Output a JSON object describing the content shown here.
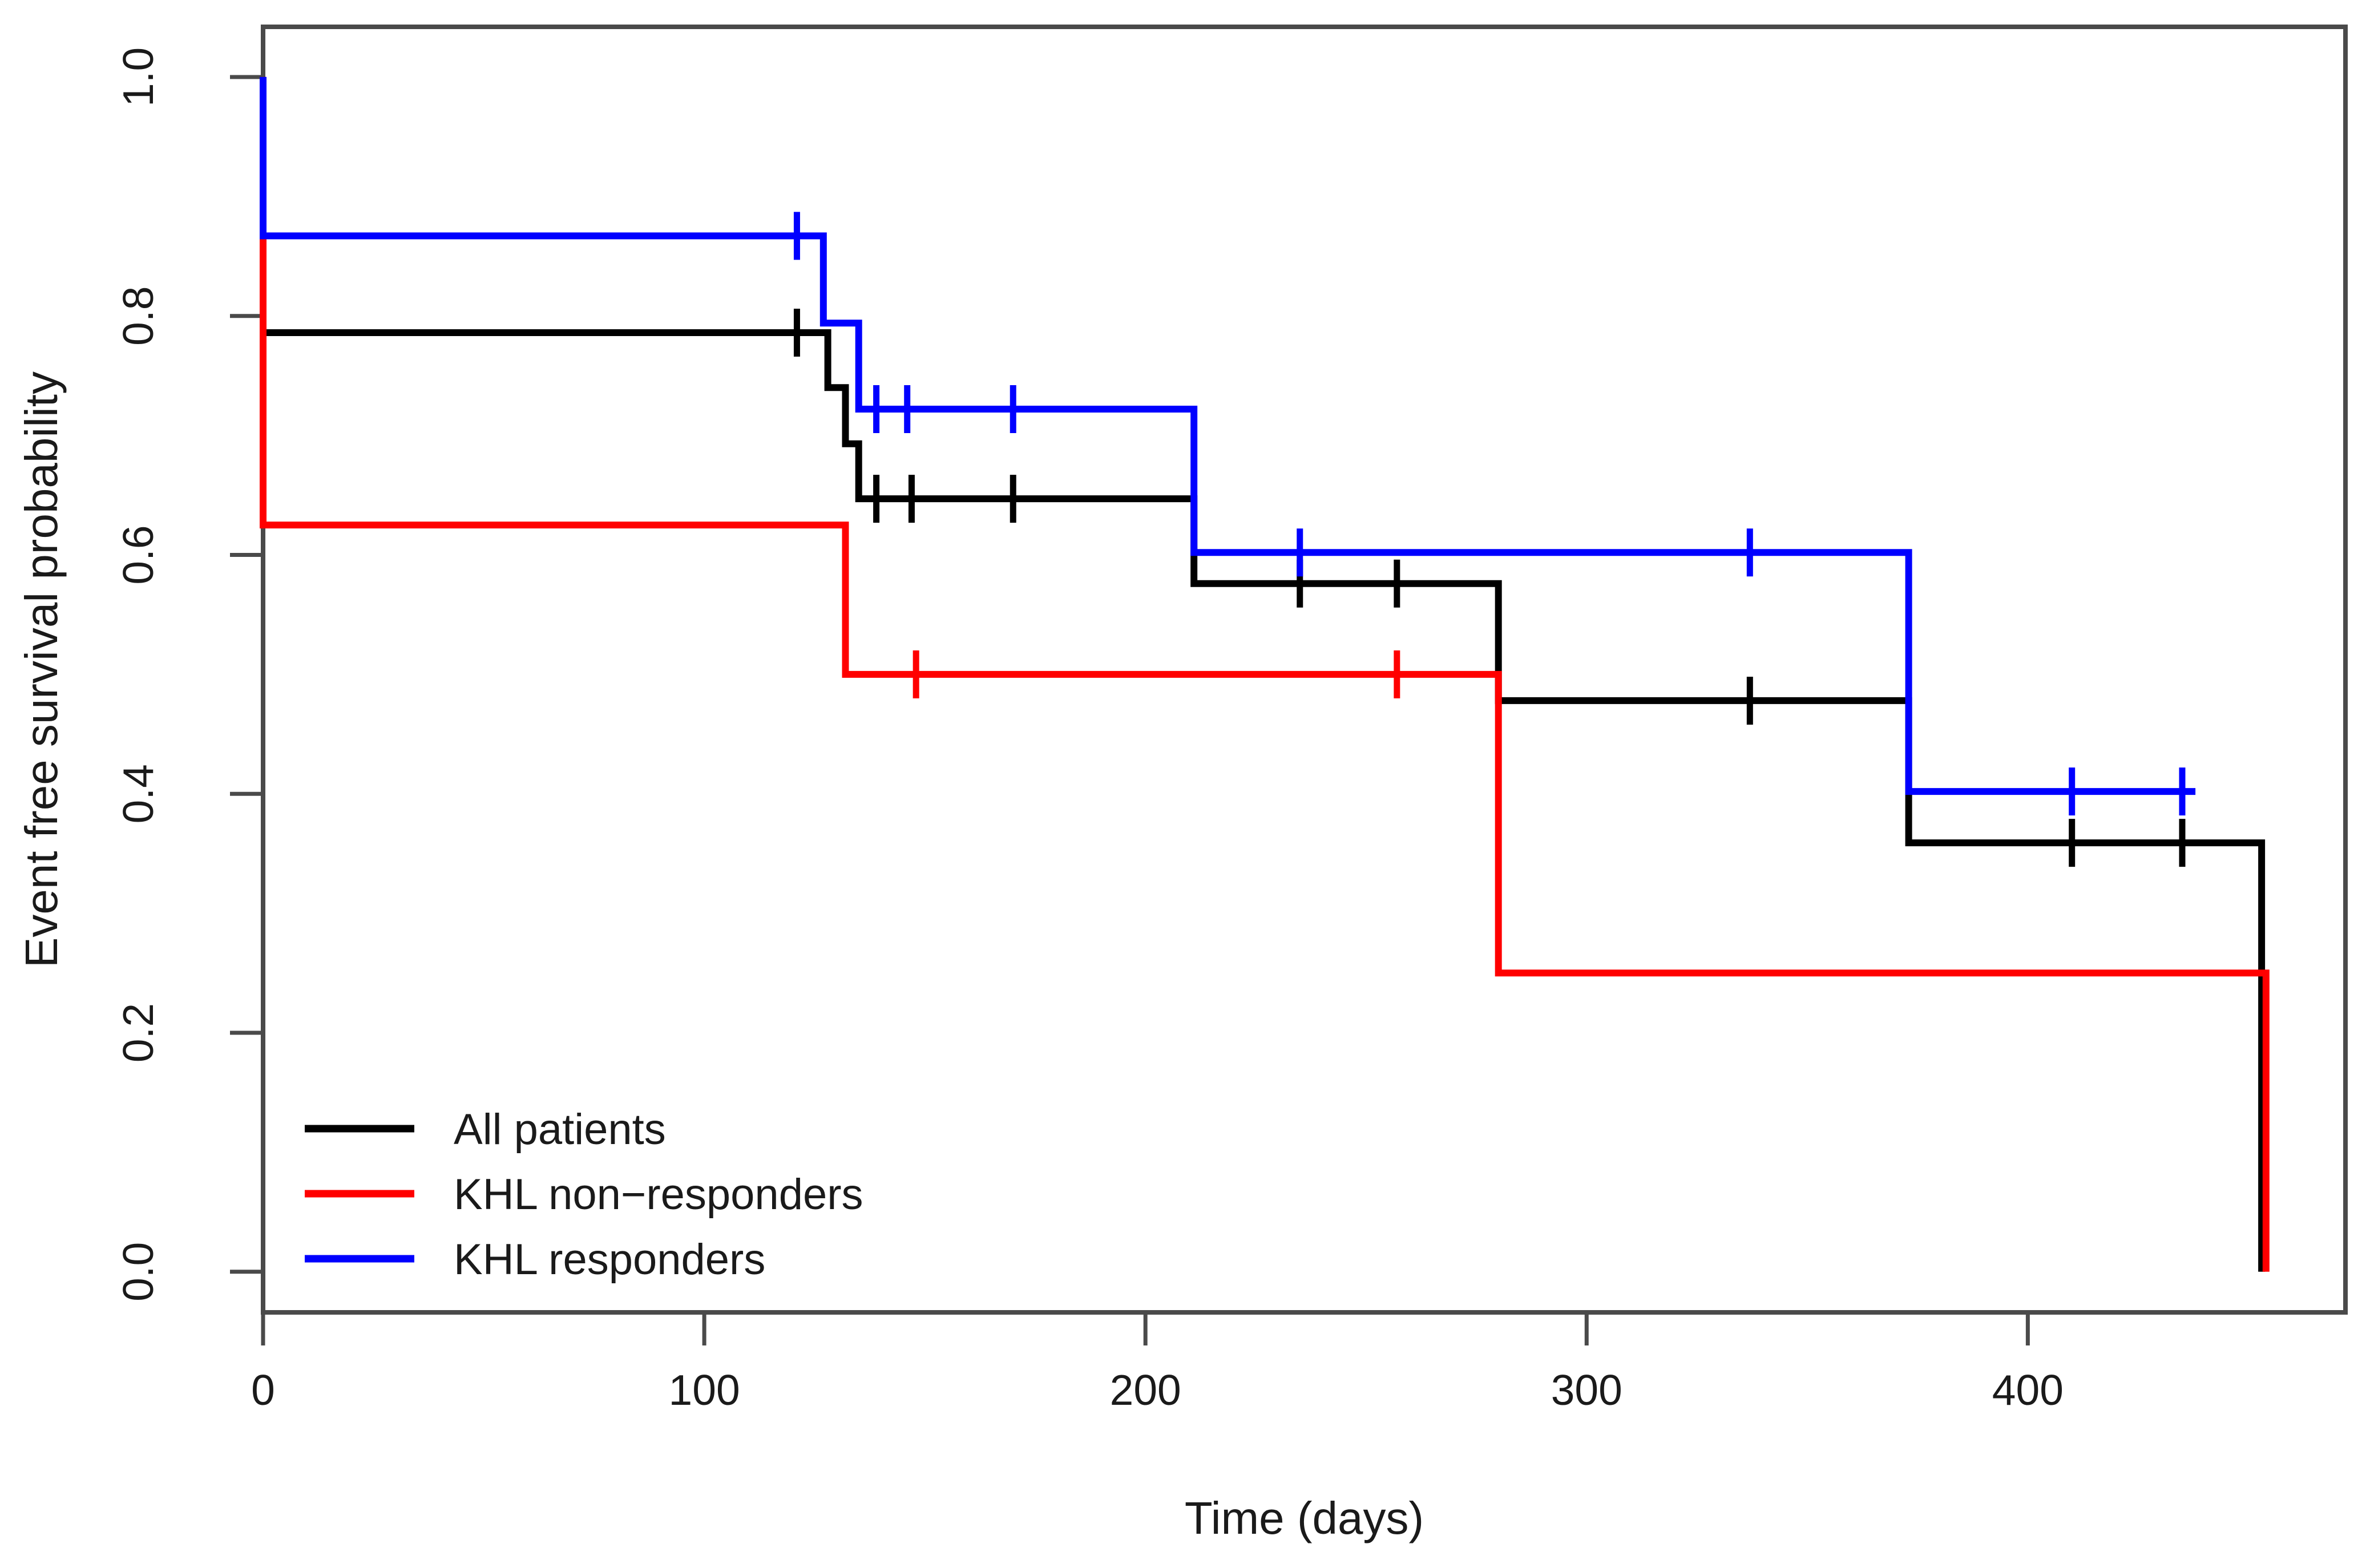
{
  "figure": {
    "background": "#ffffff"
  },
  "chart_data": {
    "type": "line",
    "subtype": "kaplan-meier-step",
    "title": "",
    "xlabel": "Time (days)",
    "ylabel": "Event free survival probability",
    "xlim": [
      0,
      472
    ],
    "ylim": [
      -0.034,
      1.042
    ],
    "x_ticks": [
      0,
      100,
      200,
      300,
      400
    ],
    "x_tick_labels": [
      "0",
      "100",
      "200",
      "300",
      "400"
    ],
    "y_ticks": [
      0.0,
      0.2,
      0.4,
      0.6,
      0.8,
      1.0
    ],
    "y_tick_labels": [
      "0.0",
      "0.2",
      "0.4",
      "0.6",
      "0.8",
      "1.0"
    ],
    "grid": false,
    "legend_position": "bottom-left",
    "frame_color": "#4a4a4a",
    "text_color": "#1a1a1a",
    "series": [
      {
        "name": "All patients",
        "color": "#000000",
        "steps": [
          [
            0,
            1.0
          ],
          [
            0,
            0.786
          ],
          [
            128,
            0.786
          ],
          [
            128,
            0.74
          ],
          [
            132,
            0.74
          ],
          [
            132,
            0.693
          ],
          [
            135,
            0.693
          ],
          [
            135,
            0.647
          ],
          [
            211,
            0.647
          ],
          [
            211,
            0.576
          ],
          [
            280,
            0.576
          ],
          [
            280,
            0.478
          ],
          [
            373,
            0.478
          ],
          [
            373,
            0.359
          ],
          [
            453,
            0.359
          ],
          [
            453,
            0.0
          ]
        ],
        "censors": [
          [
            121,
            0.786
          ],
          [
            139,
            0.647
          ],
          [
            147,
            0.647
          ],
          [
            170,
            0.647
          ],
          [
            235,
            0.576
          ],
          [
            257,
            0.576
          ],
          [
            337,
            0.478
          ],
          [
            410,
            0.359
          ],
          [
            435,
            0.359
          ]
        ]
      },
      {
        "name": "KHL non−responders",
        "color": "#ff0000",
        "steps": [
          [
            0,
            1.0
          ],
          [
            0,
            0.625
          ],
          [
            132,
            0.625
          ],
          [
            132,
            0.5
          ],
          [
            280,
            0.5
          ],
          [
            280,
            0.25
          ],
          [
            454,
            0.25
          ],
          [
            454,
            0.0
          ]
        ],
        "censors": [
          [
            148,
            0.5
          ],
          [
            257,
            0.5
          ]
        ]
      },
      {
        "name": "KHL responders",
        "color": "#0000ff",
        "steps": [
          [
            0,
            1.0
          ],
          [
            0,
            0.867
          ],
          [
            127,
            0.867
          ],
          [
            127,
            0.794
          ],
          [
            135,
            0.794
          ],
          [
            135,
            0.722
          ],
          [
            211,
            0.722
          ],
          [
            211,
            0.602
          ],
          [
            373,
            0.602
          ],
          [
            373,
            0.402
          ],
          [
            438,
            0.402
          ]
        ],
        "censors": [
          [
            121,
            0.867
          ],
          [
            139,
            0.722
          ],
          [
            146,
            0.722
          ],
          [
            170,
            0.722
          ],
          [
            235,
            0.602
          ],
          [
            337,
            0.602
          ],
          [
            410,
            0.402
          ],
          [
            435,
            0.402
          ]
        ]
      }
    ]
  }
}
